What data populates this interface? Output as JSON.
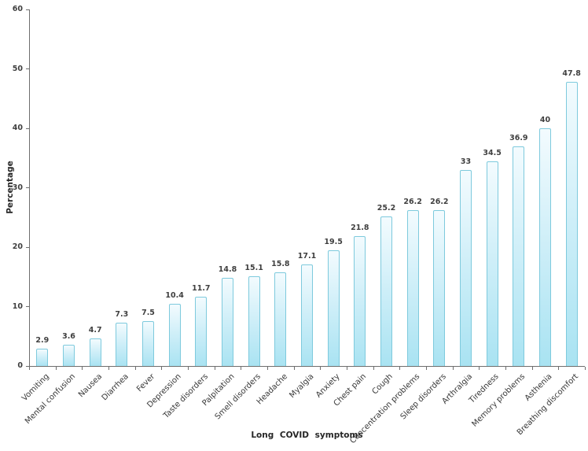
{
  "chart_data": {
    "type": "bar",
    "title": "",
    "xlabel": "Long COVID symptoms",
    "ylabel": "Percentage",
    "categories": [
      "Vomiting",
      "Mental confusion",
      "Nausea",
      "Diarrhea",
      "Fever",
      "Depression",
      "Taste disorders",
      "Palpitation",
      "Smell disorders",
      "Headache",
      "Myalgia",
      "Anxiety",
      "Chest pain",
      "Cough",
      "Concentration problems",
      "Sleep disorders",
      "Arthralgia",
      "Tiredness",
      "Memory problems",
      "Asthenia",
      "Breathing discomfort"
    ],
    "values": [
      2.9,
      3.6,
      4.7,
      7.3,
      7.5,
      10.4,
      11.7,
      14.8,
      15.1,
      15.8,
      17.1,
      19.5,
      21.8,
      25.2,
      26.2,
      26.2,
      33,
      34.5,
      36.9,
      40,
      47.8
    ],
    "value_labels": [
      "2.9",
      "3.6",
      "4.7",
      "7.3",
      "7.5",
      "10.4",
      "11.7",
      "14.8",
      "15.1",
      "15.8",
      "17.1",
      "19.5",
      "21.8",
      "25.2",
      "26.2",
      "26.2",
      "33",
      "34.5",
      "36.9",
      "40",
      "47.8"
    ],
    "ylim": [
      0,
      60
    ],
    "yticks": [
      0,
      10,
      20,
      30,
      40,
      50,
      60
    ],
    "grid": false,
    "legend": "none",
    "category_label_rotation_deg": -45
  },
  "colors": {
    "bar_fill_top": "#f3fbfe",
    "bar_fill_mid": "#cdeef8",
    "bar_fill_bottom": "#a9e3f2",
    "bar_border": "#7ecadd",
    "axis_line": "#6e6e6e",
    "tick_text": "#3f3f3f",
    "category_text": "#383838",
    "axis_title_text": "#262626",
    "background": "#ffffff"
  }
}
